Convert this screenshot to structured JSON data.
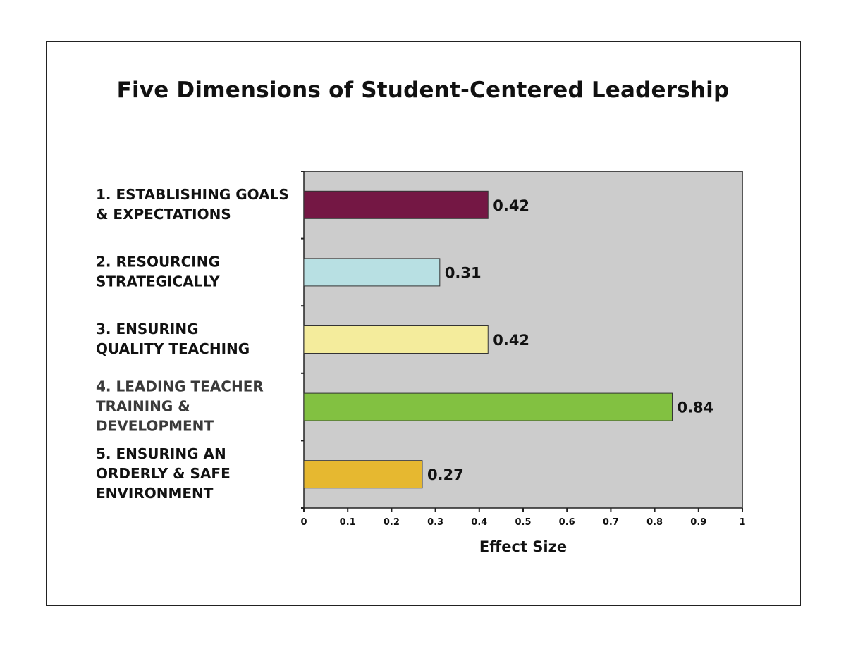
{
  "chart_data": {
    "type": "bar",
    "orientation": "horizontal",
    "title": "Five Dimensions of Student-Centered Leadership",
    "xlabel": "Effect Size",
    "ylabel": "",
    "xlim": [
      0,
      1
    ],
    "x_ticks": [
      "0",
      "0.1",
      "0.2",
      "0.3",
      "0.4",
      "0.5",
      "0.6",
      "0.7",
      "0.8",
      "0.9",
      "1"
    ],
    "grid": false,
    "legend": "none",
    "plot_background": "#cccccc",
    "categories": [
      [
        "1. ESTABLISHING GOALS",
        "& EXPECTATIONS"
      ],
      [
        "2. RESOURCING",
        "STRATEGICALLY"
      ],
      [
        "3. ENSURING",
        "QUALITY TEACHING"
      ],
      [
        "4. LEADING TEACHER",
        "TRAINING &",
        "DEVELOPMENT"
      ],
      [
        "5. ENSURING AN",
        "ORDERLY & SAFE",
        "ENVIRONMENT"
      ]
    ],
    "values": [
      0.42,
      0.31,
      0.42,
      0.84,
      0.27
    ],
    "value_labels": [
      "0.42",
      "0.31",
      "0.42",
      "0.84",
      "0.27"
    ],
    "colors": [
      "#741744",
      "#b8e0e3",
      "#f4ec9c",
      "#82c141",
      "#e6b830"
    ]
  }
}
